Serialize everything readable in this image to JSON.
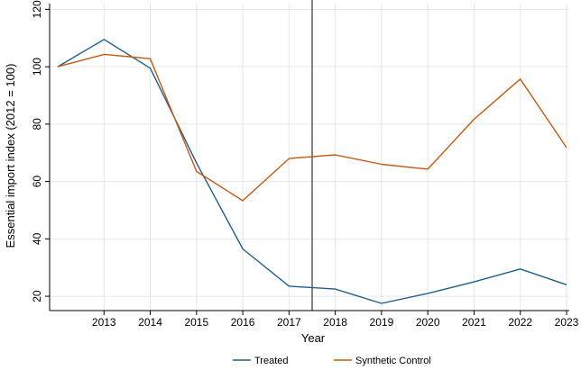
{
  "chart_data": {
    "type": "line",
    "title": "",
    "xlabel": "Year",
    "ylabel": "Essential import index (2012 = 100)",
    "x": [
      2012,
      2013,
      2014,
      2015,
      2016,
      2017,
      2018,
      2019,
      2020,
      2021,
      2022,
      2023
    ],
    "xticks": [
      2013,
      2014,
      2015,
      2016,
      2017,
      2018,
      2019,
      2020,
      2021,
      2022,
      2023
    ],
    "yticks": [
      20,
      40,
      60,
      80,
      100,
      120
    ],
    "xlim": [
      2012,
      2023
    ],
    "ylim": [
      15,
      122
    ],
    "grid": true,
    "treatment_line_x": 2017.5,
    "legend_position": "bottom",
    "series": [
      {
        "name": "Treated",
        "color": "#1f5f8b",
        "values": [
          100,
          109.5,
          99.5,
          66.5,
          36.5,
          23.5,
          22.5,
          17.5,
          21,
          25,
          29.5,
          24
        ]
      },
      {
        "name": "Synthetic Control",
        "color": "#c55a11",
        "values": [
          100,
          104.3,
          102.8,
          63.5,
          53.3,
          68,
          69.3,
          66,
          64.3,
          81.7,
          95.7,
          71.8
        ]
      }
    ]
  }
}
